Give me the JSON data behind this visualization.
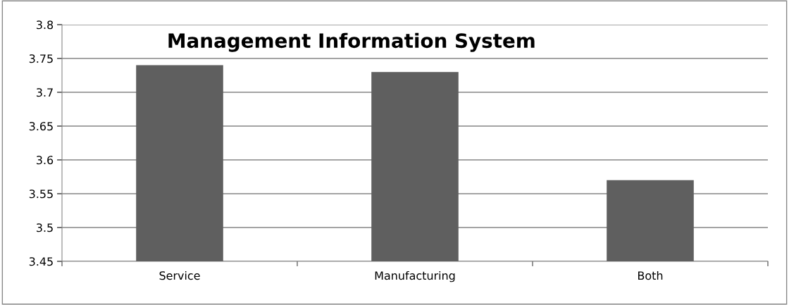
{
  "chart_data": {
    "type": "bar",
    "title": "Management Information System",
    "categories": [
      "Service",
      "Manufacturing",
      "Both"
    ],
    "values": [
      3.74,
      3.73,
      3.57
    ],
    "color": "#5f5f5f",
    "ylim": [
      3.45,
      3.8
    ],
    "yticks": [
      3.45,
      3.5,
      3.55,
      3.6,
      3.65,
      3.7,
      3.75,
      3.8
    ],
    "grid": "y",
    "legend": false
  }
}
